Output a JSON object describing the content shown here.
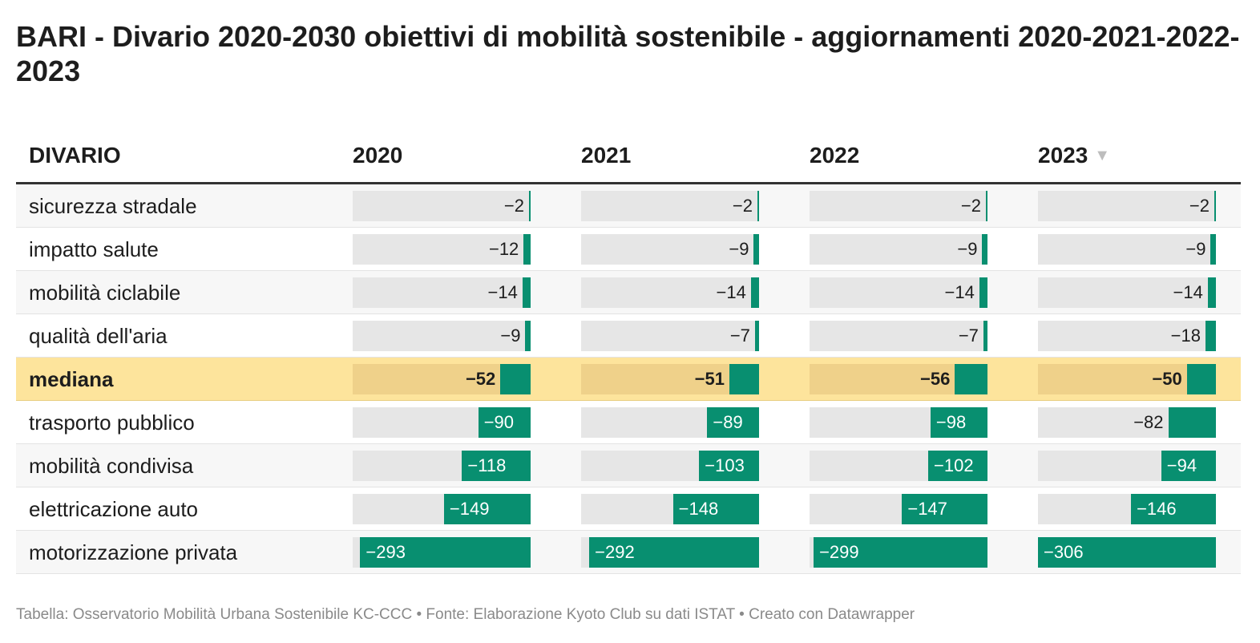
{
  "title": "BARI - Divario 2020-2030 obiettivi di mobilità sostenibile - aggiornamenti 2020-2021-2022-2023",
  "footer": "Tabella: Osservatorio Mobilità Urbana Sostenibile KC-CCC • Fonte: Elaborazione Kyoto Club su dati ISTAT • Creato con Datawrapper",
  "colors": {
    "bar": "#088f70",
    "highlight": "#fde49c"
  },
  "chart_data": {
    "type": "table",
    "columns": [
      "DIVARIO",
      "2020",
      "2021",
      "2022",
      "2023"
    ],
    "sort_icon": "sort-descending-triangle",
    "sorted_column": "2023",
    "bar_scale_max": 306,
    "rows": [
      {
        "label": "sicurezza stradale",
        "values": [
          -2,
          -2,
          -2,
          -2
        ],
        "display": [
          "−2",
          "−2",
          "−2",
          "−2"
        ]
      },
      {
        "label": "impatto salute",
        "values": [
          -12,
          -9,
          -9,
          -9
        ],
        "display": [
          "−12",
          "−9",
          "−9",
          "−9"
        ]
      },
      {
        "label": "mobilità ciclabile",
        "values": [
          -14,
          -14,
          -14,
          -14
        ],
        "display": [
          "−14",
          "−14",
          "−14",
          "−14"
        ]
      },
      {
        "label": "qualità dell'aria",
        "values": [
          -9,
          -7,
          -7,
          -18
        ],
        "display": [
          "−9",
          "−7",
          "−7",
          "−18"
        ]
      },
      {
        "label": "mediana",
        "values": [
          -52,
          -51,
          -56,
          -50
        ],
        "display": [
          "−52",
          "−51",
          "−56",
          "−50"
        ],
        "highlight": true
      },
      {
        "label": "trasporto pubblico",
        "values": [
          -90,
          -89,
          -98,
          -82
        ],
        "display": [
          "−90",
          "−89",
          "−98",
          "−82"
        ]
      },
      {
        "label": "mobilità condivisa",
        "values": [
          -118,
          -103,
          -102,
          -94
        ],
        "display": [
          "−118",
          "−103",
          "−102",
          "−94"
        ]
      },
      {
        "label": "elettricazione auto",
        "values": [
          -149,
          -148,
          -147,
          -146
        ],
        "display": [
          "−149",
          "−148",
          "−147",
          "−146"
        ]
      },
      {
        "label": "motorizzazione privata",
        "values": [
          -293,
          -292,
          -299,
          -306
        ],
        "display": [
          "−293",
          "−292",
          "−299",
          "−306"
        ]
      }
    ]
  }
}
